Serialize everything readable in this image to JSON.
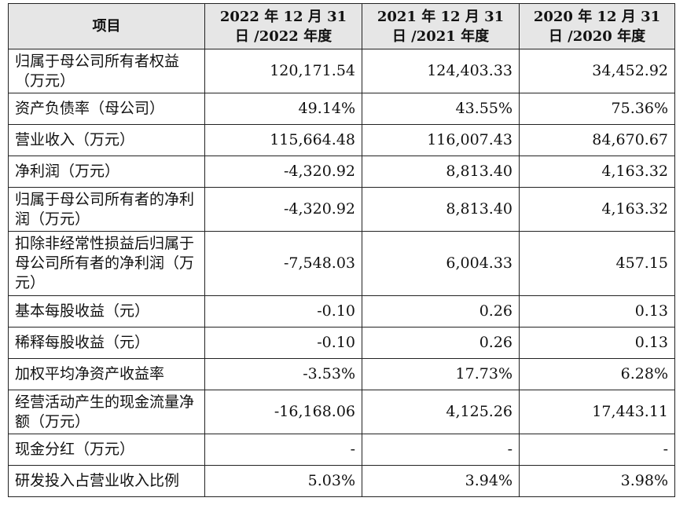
{
  "table": {
    "headers": [
      "项目",
      "2022 年 12 月 31 日 /2022 年度",
      "2021 年 12 月 31 日 /2021 年度",
      "2020 年 12 月 31 日 /2020 年度"
    ],
    "rows": [
      {
        "label": "归属于母公司所有者权益（万元）",
        "v2022": "120,171.54",
        "v2021": "124,403.33",
        "v2020": "34,452.92"
      },
      {
        "label": "资产负债率（母公司）",
        "v2022": "49.14%",
        "v2021": "43.55%",
        "v2020": "75.36%"
      },
      {
        "label": "营业收入（万元）",
        "v2022": "115,664.48",
        "v2021": "116,007.43",
        "v2020": "84,670.67"
      },
      {
        "label": "净利润（万元）",
        "v2022": "-4,320.92",
        "v2021": "8,813.40",
        "v2020": "4,163.32"
      },
      {
        "label": "归属于母公司所有者的净利润（万元）",
        "v2022": "-4,320.92",
        "v2021": "8,813.40",
        "v2020": "4,163.32"
      },
      {
        "label": "扣除非经常性损益后归属于母公司所有者的净利润（万元）",
        "v2022": "-7,548.03",
        "v2021": "6,004.33",
        "v2020": "457.15"
      },
      {
        "label": "基本每股收益（元）",
        "v2022": "-0.10",
        "v2021": "0.26",
        "v2020": "0.13"
      },
      {
        "label": "稀释每股收益（元）",
        "v2022": "-0.10",
        "v2021": "0.26",
        "v2020": "0.13"
      },
      {
        "label": "加权平均净资产收益率",
        "v2022": "-3.53%",
        "v2021": "17.73%",
        "v2020": "6.28%"
      },
      {
        "label": "经营活动产生的现金流量净额（万元）",
        "v2022": "-16,168.06",
        "v2021": "4,125.26",
        "v2020": "17,443.11"
      },
      {
        "label": "现金分红（万元）",
        "v2022": "-",
        "v2021": "-",
        "v2020": "-"
      },
      {
        "label": "研发投入占营业收入比例",
        "v2022": "5.03%",
        "v2021": "3.94%",
        "v2020": "3.98%"
      }
    ]
  }
}
